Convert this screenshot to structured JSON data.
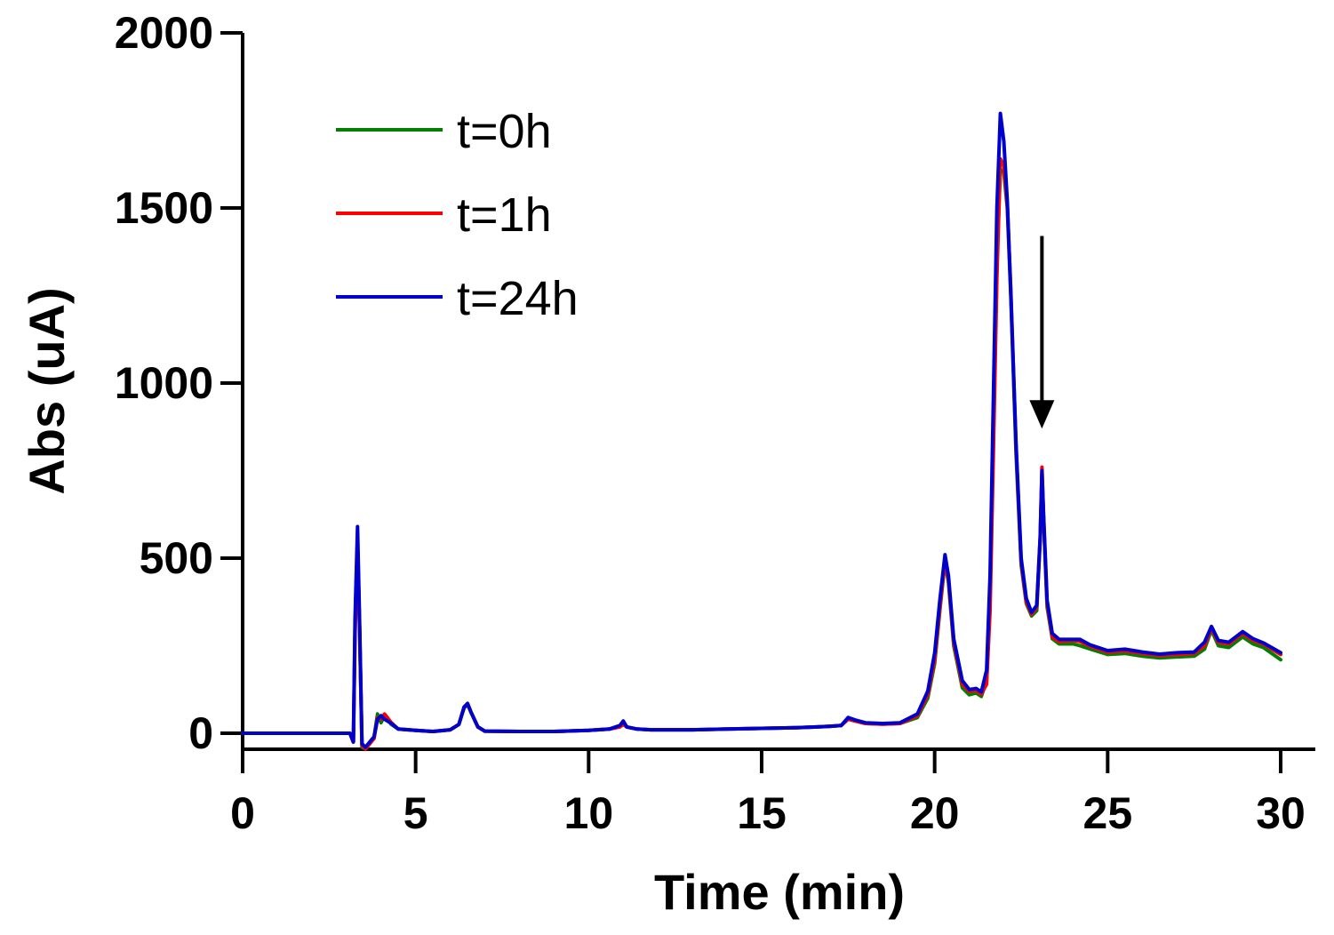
{
  "chart_data": {
    "type": "line",
    "xlabel": "Time (min)",
    "ylabel": "Abs (uA)",
    "xlim": [
      0,
      30
    ],
    "ylim": [
      -50,
      2000
    ],
    "xticks": [
      0,
      5,
      10,
      15,
      20,
      25,
      30
    ],
    "yticks": [
      0,
      500,
      1000,
      1500,
      2000
    ],
    "grid": false,
    "legend_position": "top-left",
    "annotation": {
      "type": "arrow",
      "x": 23.1,
      "y_start": 1420,
      "y_end": 870
    },
    "series": [
      {
        "name": "t=0h",
        "color": "#008000",
        "points": [
          [
            0,
            0
          ],
          [
            3.1,
            0
          ],
          [
            3.2,
            -25
          ],
          [
            3.25,
            300
          ],
          [
            3.32,
            560
          ],
          [
            3.38,
            300
          ],
          [
            3.45,
            -40
          ],
          [
            3.55,
            -45
          ],
          [
            3.8,
            -10
          ],
          [
            3.9,
            55
          ],
          [
            4.0,
            30
          ],
          [
            4.1,
            50
          ],
          [
            4.3,
            25
          ],
          [
            4.5,
            12
          ],
          [
            5,
            8
          ],
          [
            5.5,
            5
          ],
          [
            6,
            10
          ],
          [
            6.25,
            25
          ],
          [
            6.4,
            72
          ],
          [
            6.5,
            82
          ],
          [
            6.6,
            60
          ],
          [
            6.8,
            18
          ],
          [
            7,
            6
          ],
          [
            8,
            5
          ],
          [
            9,
            5
          ],
          [
            10,
            8
          ],
          [
            10.6,
            12
          ],
          [
            10.9,
            20
          ],
          [
            11.0,
            30
          ],
          [
            11.1,
            18
          ],
          [
            11.4,
            12
          ],
          [
            11.8,
            10
          ],
          [
            12,
            10
          ],
          [
            13,
            10
          ],
          [
            14,
            12
          ],
          [
            15,
            14
          ],
          [
            16,
            16
          ],
          [
            16.6,
            18
          ],
          [
            17,
            20
          ],
          [
            17.3,
            22
          ],
          [
            17.5,
            40
          ],
          [
            17.7,
            35
          ],
          [
            18,
            28
          ],
          [
            18.5,
            26
          ],
          [
            19,
            28
          ],
          [
            19.5,
            45
          ],
          [
            19.8,
            100
          ],
          [
            20.0,
            200
          ],
          [
            20.15,
            350
          ],
          [
            20.3,
            490
          ],
          [
            20.4,
            430
          ],
          [
            20.55,
            250
          ],
          [
            20.8,
            130
          ],
          [
            21.0,
            110
          ],
          [
            21.2,
            115
          ],
          [
            21.35,
            105
          ],
          [
            21.5,
            150
          ],
          [
            21.6,
            400
          ],
          [
            21.7,
            900
          ],
          [
            21.8,
            1350
          ],
          [
            21.9,
            1610
          ],
          [
            22.0,
            1600
          ],
          [
            22.1,
            1500
          ],
          [
            22.2,
            1250
          ],
          [
            22.35,
            800
          ],
          [
            22.5,
            480
          ],
          [
            22.65,
            370
          ],
          [
            22.8,
            335
          ],
          [
            22.95,
            350
          ],
          [
            23.05,
            550
          ],
          [
            23.1,
            740
          ],
          [
            23.15,
            600
          ],
          [
            23.25,
            360
          ],
          [
            23.4,
            270
          ],
          [
            23.6,
            255
          ],
          [
            24,
            255
          ],
          [
            24.2,
            250
          ],
          [
            24.5,
            240
          ],
          [
            25,
            225
          ],
          [
            25.5,
            228
          ],
          [
            26,
            220
          ],
          [
            26.5,
            215
          ],
          [
            27,
            218
          ],
          [
            27.5,
            220
          ],
          [
            27.8,
            240
          ],
          [
            28.0,
            295
          ],
          [
            28.2,
            250
          ],
          [
            28.5,
            245
          ],
          [
            28.9,
            275
          ],
          [
            29.2,
            255
          ],
          [
            29.5,
            245
          ],
          [
            30,
            210
          ]
        ]
      },
      {
        "name": "t=1h",
        "color": "#ff0000",
        "points": [
          [
            0,
            0
          ],
          [
            3.1,
            0
          ],
          [
            3.2,
            -25
          ],
          [
            3.25,
            280
          ],
          [
            3.32,
            540
          ],
          [
            3.38,
            300
          ],
          [
            3.45,
            -35
          ],
          [
            3.55,
            -45
          ],
          [
            3.8,
            -15
          ],
          [
            3.9,
            45
          ],
          [
            4.0,
            40
          ],
          [
            4.1,
            55
          ],
          [
            4.3,
            30
          ],
          [
            4.5,
            12
          ],
          [
            5,
            8
          ],
          [
            5.5,
            5
          ],
          [
            6,
            10
          ],
          [
            6.25,
            25
          ],
          [
            6.4,
            75
          ],
          [
            6.5,
            85
          ],
          [
            6.6,
            60
          ],
          [
            6.8,
            18
          ],
          [
            7,
            6
          ],
          [
            8,
            5
          ],
          [
            9,
            5
          ],
          [
            10,
            8
          ],
          [
            10.6,
            12
          ],
          [
            10.9,
            18
          ],
          [
            11.0,
            25
          ],
          [
            11.1,
            18
          ],
          [
            11.4,
            12
          ],
          [
            11.8,
            10
          ],
          [
            12,
            10
          ],
          [
            13,
            10
          ],
          [
            14,
            12
          ],
          [
            15,
            14
          ],
          [
            16,
            16
          ],
          [
            16.6,
            18
          ],
          [
            17,
            20
          ],
          [
            17.3,
            22
          ],
          [
            17.5,
            40
          ],
          [
            17.7,
            35
          ],
          [
            18,
            28
          ],
          [
            18.5,
            26
          ],
          [
            19,
            28
          ],
          [
            19.5,
            50
          ],
          [
            19.8,
            110
          ],
          [
            20.0,
            210
          ],
          [
            20.15,
            360
          ],
          [
            20.3,
            495
          ],
          [
            20.4,
            440
          ],
          [
            20.55,
            260
          ],
          [
            20.8,
            140
          ],
          [
            21.0,
            120
          ],
          [
            21.2,
            122
          ],
          [
            21.35,
            112
          ],
          [
            21.5,
            140
          ],
          [
            21.6,
            350
          ],
          [
            21.7,
            820
          ],
          [
            21.8,
            1300
          ],
          [
            21.9,
            1640
          ],
          [
            22.0,
            1620
          ],
          [
            22.1,
            1510
          ],
          [
            22.2,
            1270
          ],
          [
            22.35,
            820
          ],
          [
            22.5,
            490
          ],
          [
            22.65,
            375
          ],
          [
            22.8,
            340
          ],
          [
            22.95,
            360
          ],
          [
            23.05,
            560
          ],
          [
            23.1,
            760
          ],
          [
            23.15,
            610
          ],
          [
            23.25,
            370
          ],
          [
            23.4,
            275
          ],
          [
            23.6,
            262
          ],
          [
            24,
            265
          ],
          [
            24.2,
            262
          ],
          [
            24.5,
            248
          ],
          [
            25,
            232
          ],
          [
            25.5,
            235
          ],
          [
            26,
            228
          ],
          [
            26.5,
            222
          ],
          [
            27,
            225
          ],
          [
            27.5,
            228
          ],
          [
            27.8,
            250
          ],
          [
            28.0,
            300
          ],
          [
            28.2,
            260
          ],
          [
            28.5,
            255
          ],
          [
            28.9,
            285
          ],
          [
            29.2,
            265
          ],
          [
            29.5,
            255
          ],
          [
            30,
            225
          ]
        ]
      },
      {
        "name": "t=24h",
        "color": "#0000cc",
        "points": [
          [
            0,
            0
          ],
          [
            3.1,
            0
          ],
          [
            3.2,
            -25
          ],
          [
            3.25,
            330
          ],
          [
            3.32,
            590
          ],
          [
            3.38,
            320
          ],
          [
            3.45,
            -30
          ],
          [
            3.55,
            -40
          ],
          [
            3.8,
            -10
          ],
          [
            3.9,
            40
          ],
          [
            4.0,
            50
          ],
          [
            4.1,
            40
          ],
          [
            4.3,
            28
          ],
          [
            4.5,
            12
          ],
          [
            5,
            8
          ],
          [
            5.5,
            5
          ],
          [
            6,
            10
          ],
          [
            6.25,
            25
          ],
          [
            6.4,
            75
          ],
          [
            6.5,
            85
          ],
          [
            6.6,
            60
          ],
          [
            6.8,
            18
          ],
          [
            7,
            6
          ],
          [
            8,
            5
          ],
          [
            9,
            5
          ],
          [
            10,
            8
          ],
          [
            10.6,
            12
          ],
          [
            10.9,
            22
          ],
          [
            11.0,
            35
          ],
          [
            11.1,
            18
          ],
          [
            11.4,
            12
          ],
          [
            11.8,
            10
          ],
          [
            12,
            10
          ],
          [
            13,
            10
          ],
          [
            14,
            12
          ],
          [
            15,
            14
          ],
          [
            16,
            16
          ],
          [
            16.6,
            18
          ],
          [
            17,
            20
          ],
          [
            17.3,
            22
          ],
          [
            17.5,
            45
          ],
          [
            17.7,
            38
          ],
          [
            18,
            30
          ],
          [
            18.5,
            28
          ],
          [
            19,
            30
          ],
          [
            19.5,
            55
          ],
          [
            19.8,
            120
          ],
          [
            20.0,
            230
          ],
          [
            20.15,
            380
          ],
          [
            20.3,
            510
          ],
          [
            20.4,
            450
          ],
          [
            20.55,
            270
          ],
          [
            20.8,
            150
          ],
          [
            21.0,
            125
          ],
          [
            21.2,
            128
          ],
          [
            21.35,
            118
          ],
          [
            21.5,
            180
          ],
          [
            21.6,
            450
          ],
          [
            21.7,
            980
          ],
          [
            21.8,
            1500
          ],
          [
            21.9,
            1770
          ],
          [
            22.0,
            1690
          ],
          [
            22.1,
            1520
          ],
          [
            22.2,
            1260
          ],
          [
            22.35,
            830
          ],
          [
            22.5,
            500
          ],
          [
            22.65,
            385
          ],
          [
            22.8,
            345
          ],
          [
            22.95,
            365
          ],
          [
            23.05,
            560
          ],
          [
            23.1,
            750
          ],
          [
            23.15,
            620
          ],
          [
            23.25,
            380
          ],
          [
            23.4,
            285
          ],
          [
            23.6,
            268
          ],
          [
            24,
            268
          ],
          [
            24.2,
            268
          ],
          [
            24.5,
            252
          ],
          [
            25,
            236
          ],
          [
            25.5,
            240
          ],
          [
            26,
            232
          ],
          [
            26.5,
            226
          ],
          [
            27,
            230
          ],
          [
            27.5,
            232
          ],
          [
            27.8,
            260
          ],
          [
            28.0,
            305
          ],
          [
            28.2,
            265
          ],
          [
            28.5,
            260
          ],
          [
            28.9,
            290
          ],
          [
            29.2,
            270
          ],
          [
            29.5,
            258
          ],
          [
            30,
            230
          ]
        ]
      }
    ]
  }
}
